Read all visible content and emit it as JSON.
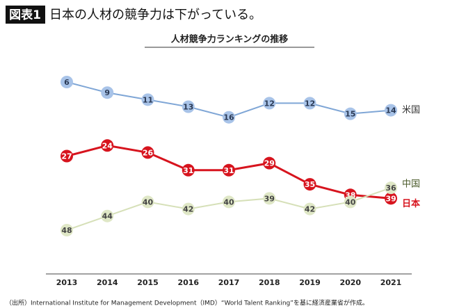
{
  "header": {
    "tag": "図表1",
    "title": "日本の人材の競争力は下がっている。"
  },
  "chart_data": {
    "type": "line",
    "title": "人材競争力ランキングの推移",
    "categories": [
      "2013",
      "2014",
      "2015",
      "2016",
      "2017",
      "2018",
      "2019",
      "2020",
      "2021"
    ],
    "invert_y": true,
    "series": [
      {
        "name": "米国",
        "color": "#7fa6d6",
        "marker_color": "#a8c3e8",
        "text_color": "#2b3a55",
        "label_color": "#333333",
        "values": [
          6,
          9,
          11,
          13,
          16,
          12,
          12,
          15,
          14
        ]
      },
      {
        "name": "日本",
        "color": "#d7141e",
        "marker_color": "#d7141e",
        "text_color": "#ffffff",
        "label_color": "#d7141e",
        "values": [
          27,
          24,
          26,
          31,
          31,
          29,
          35,
          38,
          39
        ]
      },
      {
        "name": "中国",
        "color": "#d6e0b8",
        "marker_color": "#dfe7c6",
        "text_color": "#444444",
        "label_color": "#4a5a2a",
        "values": [
          48,
          44,
          40,
          42,
          40,
          39,
          42,
          40,
          36
        ]
      }
    ]
  },
  "source": "（出所）International Institute for Management Development（IMD）“World Talent Ranking”を基に経済産業省が作成。"
}
